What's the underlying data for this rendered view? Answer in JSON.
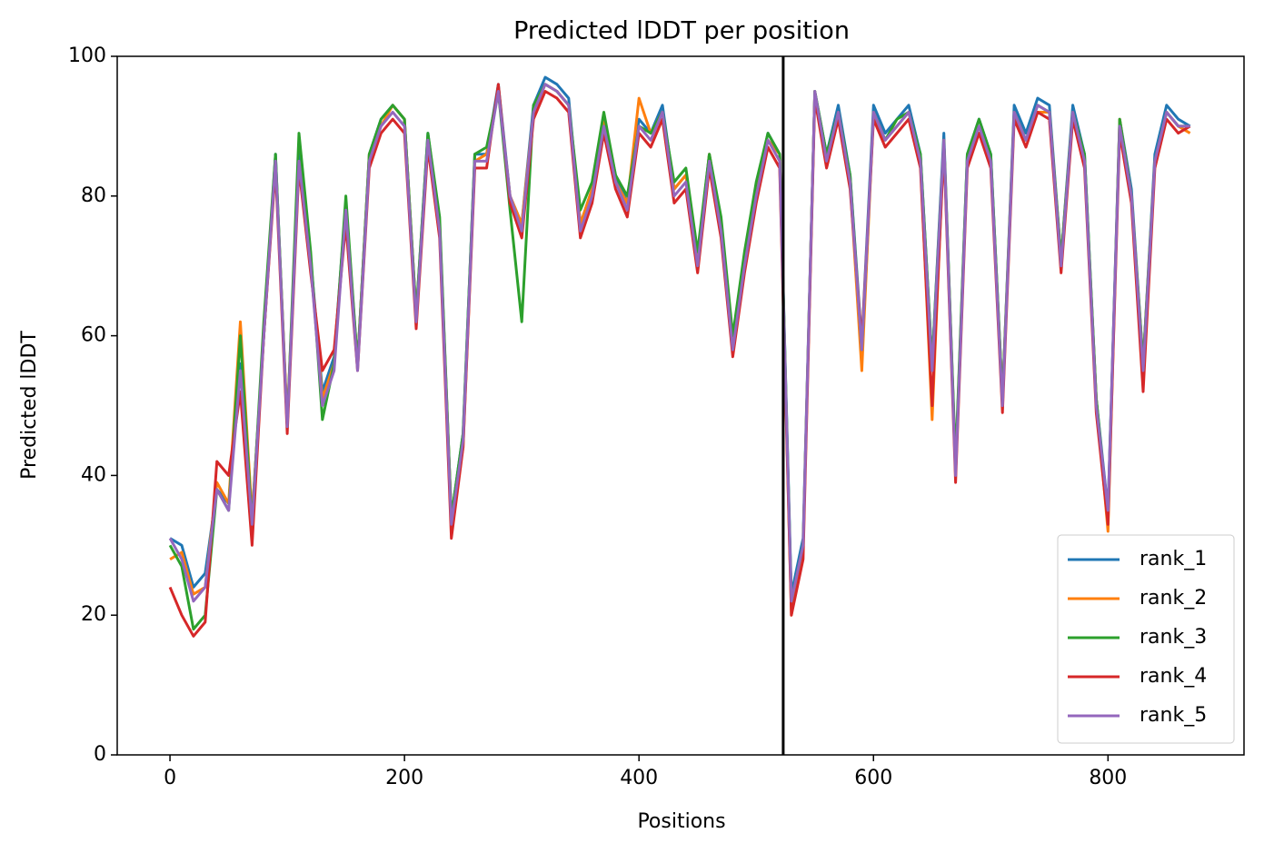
{
  "chart_data": {
    "type": "line",
    "title": "Predicted lDDT per position",
    "xlabel": "Positions",
    "ylabel": "Predicted lDDT",
    "x": [
      0,
      10,
      20,
      30,
      40,
      50,
      60,
      70,
      80,
      90,
      100,
      110,
      120,
      130,
      140,
      150,
      160,
      170,
      180,
      190,
      200,
      210,
      220,
      230,
      240,
      250,
      260,
      270,
      280,
      290,
      300,
      310,
      320,
      330,
      340,
      350,
      360,
      370,
      380,
      390,
      400,
      410,
      420,
      430,
      440,
      450,
      460,
      470,
      480,
      490,
      500,
      510,
      520,
      530,
      540,
      550,
      560,
      570,
      580,
      590,
      600,
      610,
      620,
      630,
      640,
      650,
      660,
      670,
      680,
      690,
      700,
      710,
      720,
      730,
      740,
      750,
      760,
      770,
      780,
      790,
      800,
      810,
      820,
      830,
      840,
      850,
      860,
      870
    ],
    "series": [
      {
        "name": "rank_1",
        "color": "#1f77b4",
        "values": [
          31,
          30,
          24,
          26,
          38,
          36,
          56,
          34,
          60,
          86,
          47,
          86,
          71,
          52,
          57,
          79,
          56,
          86,
          91,
          93,
          91,
          63,
          89,
          76,
          34,
          46,
          86,
          86,
          96,
          80,
          76,
          93,
          97,
          96,
          94,
          76,
          81,
          91,
          83,
          79,
          91,
          89,
          93,
          81,
          83,
          71,
          86,
          76,
          59,
          71,
          81,
          89,
          86,
          23,
          31,
          95,
          86,
          93,
          83,
          59,
          93,
          89,
          91,
          93,
          86,
          56,
          89,
          41,
          86,
          91,
          86,
          51,
          93,
          89,
          94,
          93,
          71,
          93,
          86,
          51,
          35,
          91,
          81,
          56,
          86,
          93,
          91,
          90
        ]
      },
      {
        "name": "rank_2",
        "color": "#ff7f0e",
        "values": [
          28,
          29,
          23,
          24,
          39,
          36,
          62,
          34,
          60,
          85,
          48,
          85,
          70,
          51,
          56,
          78,
          56,
          86,
          90,
          93,
          91,
          63,
          88,
          76,
          34,
          44,
          85,
          86,
          95,
          80,
          76,
          92,
          96,
          95,
          93,
          76,
          81,
          91,
          82,
          79,
          94,
          89,
          92,
          81,
          83,
          71,
          86,
          76,
          59,
          71,
          81,
          88,
          86,
          20,
          30,
          95,
          85,
          92,
          82,
          55,
          92,
          88,
          90,
          92,
          85,
          48,
          88,
          41,
          85,
          90,
          85,
          51,
          92,
          88,
          92,
          92,
          71,
          92,
          85,
          51,
          32,
          91,
          80,
          56,
          85,
          92,
          90,
          89
        ]
      },
      {
        "name": "rank_3",
        "color": "#2ca02c",
        "values": [
          30,
          27,
          18,
          20,
          38,
          35,
          60,
          33,
          62,
          86,
          47,
          89,
          72,
          48,
          56,
          80,
          56,
          86,
          91,
          93,
          91,
          63,
          89,
          77,
          34,
          46,
          86,
          87,
          95,
          78,
          62,
          93,
          96,
          95,
          93,
          78,
          82,
          92,
          83,
          80,
          90,
          89,
          92,
          82,
          84,
          72,
          86,
          77,
          60,
          72,
          82,
          89,
          86,
          22,
          30,
          95,
          86,
          92,
          83,
          58,
          92,
          88,
          91,
          92,
          86,
          56,
          88,
          42,
          86,
          91,
          86,
          51,
          92,
          88,
          93,
          92,
          71,
          92,
          86,
          51,
          34,
          91,
          80,
          56,
          85,
          92,
          90,
          90
        ]
      },
      {
        "name": "rank_4",
        "color": "#d62728",
        "values": [
          24,
          20,
          17,
          19,
          42,
          40,
          52,
          30,
          60,
          84,
          46,
          84,
          69,
          55,
          58,
          76,
          55,
          84,
          89,
          91,
          89,
          61,
          87,
          74,
          31,
          44,
          84,
          84,
          96,
          79,
          74,
          91,
          95,
          94,
          92,
          74,
          79,
          89,
          81,
          77,
          89,
          87,
          91,
          79,
          81,
          69,
          84,
          74,
          57,
          69,
          79,
          87,
          84,
          20,
          28,
          94,
          84,
          91,
          81,
          59,
          91,
          87,
          89,
          91,
          84,
          50,
          87,
          39,
          84,
          89,
          84,
          49,
          91,
          87,
          92,
          91,
          69,
          91,
          84,
          49,
          33,
          89,
          79,
          52,
          84,
          91,
          89,
          90
        ]
      },
      {
        "name": "rank_5",
        "color": "#9467bd",
        "values": [
          31,
          28,
          22,
          24,
          38,
          35,
          55,
          33,
          60,
          85,
          47,
          85,
          70,
          50,
          55,
          78,
          55,
          85,
          90,
          92,
          90,
          62,
          88,
          75,
          33,
          45,
          85,
          85,
          95,
          80,
          75,
          92,
          96,
          95,
          93,
          75,
          80,
          90,
          82,
          78,
          90,
          88,
          92,
          80,
          82,
          70,
          85,
          75,
          58,
          70,
          80,
          88,
          85,
          22,
          30,
          95,
          85,
          92,
          82,
          58,
          92,
          88,
          90,
          92,
          85,
          55,
          88,
          40,
          85,
          90,
          85,
          50,
          92,
          88,
          93,
          92,
          70,
          92,
          85,
          50,
          35,
          90,
          80,
          55,
          85,
          92,
          90,
          90
        ]
      }
    ],
    "vlines": [
      523
    ],
    "vline_color": "#000000",
    "xlim": [
      -45,
      916
    ],
    "ylim": [
      0,
      100
    ],
    "xticks": [
      0,
      200,
      400,
      600,
      800
    ],
    "yticks": [
      0,
      20,
      40,
      60,
      80,
      100
    ],
    "grid": false,
    "legend": "lower right"
  }
}
